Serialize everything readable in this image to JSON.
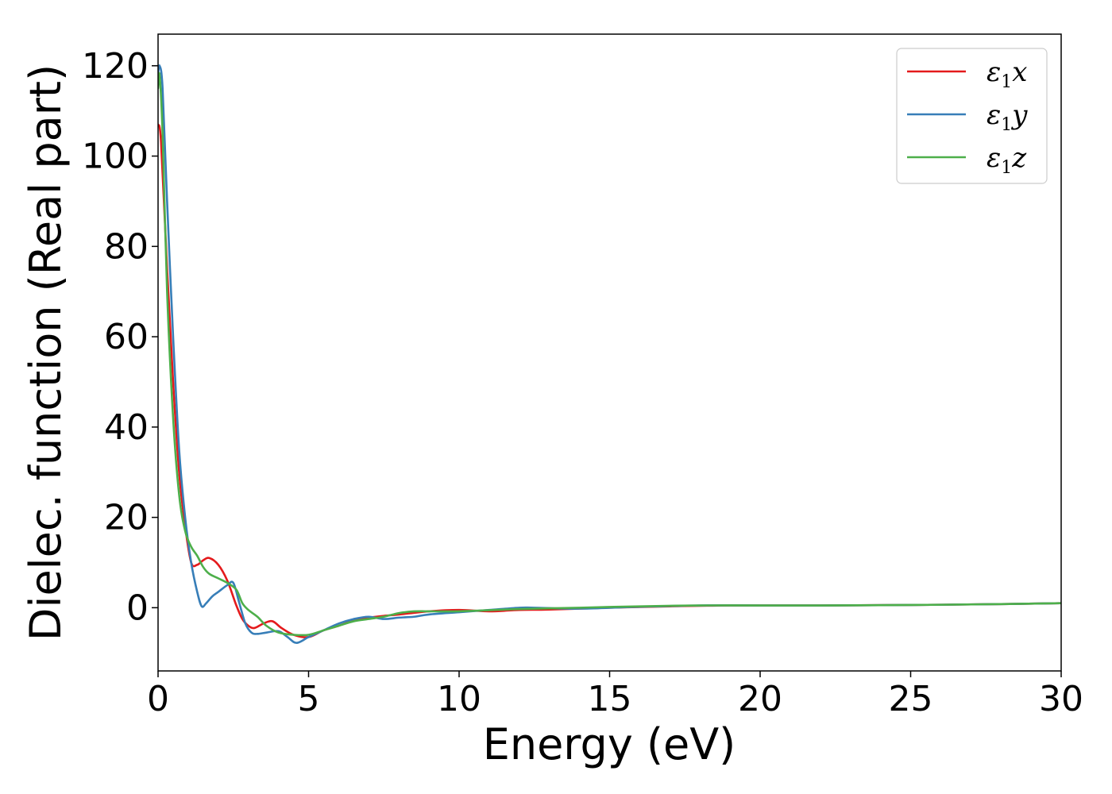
{
  "chart_data": {
    "type": "line",
    "title": "",
    "xlabel": "Energy (eV)",
    "ylabel": "Dielec. function (Real part)",
    "xlim": [
      0,
      30
    ],
    "ylim": [
      -14,
      127
    ],
    "xticks": [
      0,
      5,
      10,
      15,
      20,
      25,
      30
    ],
    "yticks": [
      0,
      20,
      40,
      60,
      80,
      100,
      120
    ],
    "grid": false,
    "legend": {
      "position": "top-right"
    },
    "series": [
      {
        "name": "ε₁x",
        "label_base": "ε",
        "label_sub": "1",
        "label_suffix": "x",
        "color": "#e41a1c",
        "x": [
          0,
          0.1,
          0.3,
          0.5,
          0.7,
          0.9,
          1.1,
          1.3,
          1.5,
          1.7,
          2.0,
          2.3,
          2.6,
          2.8,
          3.0,
          3.2,
          3.5,
          3.8,
          4.1,
          4.5,
          5.0,
          5.5,
          6.0,
          6.5,
          7.0,
          7.5,
          8.0,
          9.0,
          10.0,
          11.0,
          12.0,
          13.0,
          15.0,
          17.0,
          19.0,
          22.0,
          25.0,
          28.0,
          30.0
        ],
        "y": [
          107,
          103,
          75,
          50,
          30,
          18,
          10,
          9.5,
          10.5,
          11,
          9.5,
          6.0,
          0.5,
          -2.5,
          -4.0,
          -4.5,
          -3.5,
          -3.0,
          -4.5,
          -6.0,
          -6.5,
          -5.0,
          -4.0,
          -2.8,
          -2.2,
          -1.8,
          -1.5,
          -0.8,
          -0.5,
          -0.8,
          -0.5,
          -0.4,
          0.0,
          0.3,
          0.5,
          0.5,
          0.6,
          0.8,
          1.0
        ]
      },
      {
        "name": "ε₁y",
        "label_base": "ε",
        "label_sub": "1",
        "label_suffix": "y",
        "color": "#377eb8",
        "x": [
          0,
          0.05,
          0.15,
          0.3,
          0.5,
          0.7,
          0.9,
          1.1,
          1.3,
          1.45,
          1.6,
          1.8,
          2.0,
          2.3,
          2.5,
          2.7,
          2.9,
          3.1,
          3.3,
          3.6,
          4.0,
          4.3,
          4.6,
          5.0,
          5.5,
          6.0,
          6.5,
          7.0,
          7.5,
          8.0,
          8.5,
          9.0,
          10.0,
          11.0,
          12.0,
          12.5,
          14.0,
          16.0,
          18.0,
          20.0,
          22.0,
          25.0,
          28.0,
          30.0
        ],
        "y": [
          118,
          120,
          115,
          90,
          60,
          35,
          20,
          10,
          3.5,
          0.3,
          1.0,
          2.5,
          3.5,
          5.0,
          5.5,
          1.0,
          -3.5,
          -5.5,
          -5.8,
          -5.5,
          -5.2,
          -6.5,
          -7.8,
          -6.5,
          -5.0,
          -3.5,
          -2.5,
          -2.0,
          -2.5,
          -2.2,
          -2.0,
          -1.5,
          -1.0,
          -0.5,
          0.0,
          0.0,
          -0.2,
          0.2,
          0.5,
          0.5,
          0.5,
          0.6,
          0.8,
          1.0
        ]
      },
      {
        "name": "ε₁z",
        "label_base": "ε",
        "label_sub": "1",
        "label_suffix": "z",
        "color": "#4daf4a",
        "x": [
          0,
          0.05,
          0.15,
          0.3,
          0.5,
          0.7,
          0.9,
          1.1,
          1.3,
          1.5,
          1.7,
          2.0,
          2.3,
          2.6,
          2.8,
          3.0,
          3.3,
          3.6,
          4.0,
          4.5,
          5.0,
          5.5,
          6.0,
          6.5,
          7.0,
          7.5,
          8.0,
          8.5,
          9.0,
          10.0,
          12.0,
          14.0,
          16.0,
          18.0,
          20.0,
          22.0,
          25.0,
          28.0,
          30.0
        ],
        "y": [
          115,
          118,
          105,
          70,
          42,
          25,
          17,
          13.5,
          11.5,
          9.0,
          7.5,
          6.5,
          5.5,
          4.0,
          1.0,
          -0.5,
          -2.0,
          -4.0,
          -5.5,
          -6.0,
          -6.0,
          -5.0,
          -4.0,
          -3.0,
          -2.5,
          -2.0,
          -1.2,
          -0.8,
          -0.8,
          -0.8,
          -0.3,
          0.0,
          0.3,
          0.5,
          0.5,
          0.5,
          0.6,
          0.8,
          1.0
        ]
      }
    ]
  }
}
